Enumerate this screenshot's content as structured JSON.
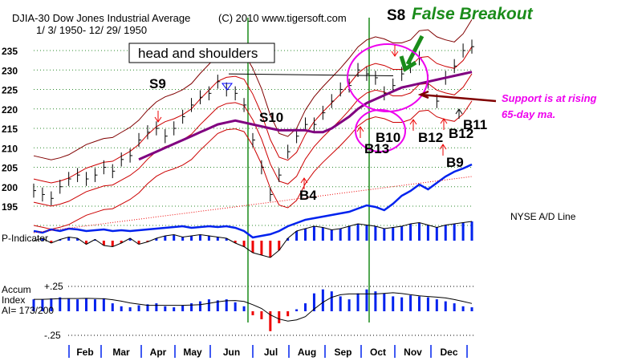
{
  "chart_data": {
    "type": "line",
    "title": "DJIA-30  Dow Jones Industrial Average",
    "date_range": "1/ 3/ 1950- 12/ 29/ 1950",
    "copyright": "(C) 2010 www.tigersoft.com",
    "ylim": [
      195,
      235
    ],
    "y_ticks": [
      "235",
      "230",
      "225",
      "220",
      "215",
      "210",
      "205",
      "200",
      "195"
    ],
    "months": [
      "Feb",
      "Mar",
      "Apr",
      "May",
      "Jun",
      "Jul",
      "Aug",
      "Sep",
      "Oct",
      "Nov",
      "Dec"
    ],
    "weekly_close": [
      199,
      198,
      197,
      200,
      202,
      203,
      202,
      203,
      205,
      204,
      207,
      208,
      212,
      214,
      215,
      213,
      215,
      218,
      221,
      223,
      224,
      227,
      225,
      224,
      221,
      212,
      205,
      198,
      203,
      209,
      213,
      216,
      216,
      219,
      222,
      225,
      226,
      230,
      229,
      228,
      224,
      226,
      229,
      231,
      233,
      227,
      222,
      228,
      231,
      235,
      236
    ],
    "ma65": [
      null,
      null,
      null,
      null,
      null,
      null,
      null,
      null,
      null,
      null,
      null,
      null,
      207,
      208,
      209,
      210,
      211,
      212,
      213,
      214,
      215,
      216,
      216.5,
      217,
      216.5,
      216,
      215.5,
      215,
      214.5,
      214.5,
      214.5,
      214.5,
      214,
      214,
      215,
      216.5,
      218,
      220,
      221.5,
      222.5,
      223.5,
      224.5,
      225.5,
      226,
      226.5,
      227,
      227.5,
      228,
      228.5,
      229,
      229.5
    ],
    "ad_line": [
      12,
      10,
      14,
      12,
      15,
      14,
      12,
      13,
      14,
      12,
      13,
      12,
      13,
      14,
      15,
      16,
      17,
      18,
      16,
      17,
      18,
      17,
      18,
      16,
      12,
      4,
      6,
      8,
      12,
      18,
      22,
      26,
      28,
      30,
      32,
      34,
      36,
      40,
      44,
      42,
      38,
      46,
      56,
      62,
      70,
      64,
      72,
      80,
      86,
      90,
      95
    ],
    "p_indicator": [
      0,
      2,
      -2,
      1,
      3,
      2,
      -3,
      1,
      -4,
      -5,
      -2,
      2,
      -3,
      -1,
      2,
      4,
      5,
      3,
      4,
      5,
      4,
      3,
      2,
      -2,
      -5,
      -10,
      -12,
      -14,
      -8,
      2,
      8,
      10,
      12,
      11,
      9,
      10,
      12,
      14,
      13,
      12,
      10,
      11,
      12,
      14,
      15,
      13,
      11,
      13,
      14,
      15,
      16
    ],
    "accum_index": [
      0.12,
      0.12,
      0.13,
      0.14,
      0.13,
      0.12,
      0.13,
      0.12,
      0.13,
      0.08,
      0.05,
      0.04,
      0.06,
      0.07,
      0.08,
      0.05,
      0.04,
      0.06,
      0.08,
      0.1,
      0.12,
      0.11,
      0.12,
      0.09,
      0.05,
      -0.04,
      -0.08,
      -0.2,
      -0.12,
      -0.05,
      0.02,
      0.08,
      0.18,
      0.22,
      0.2,
      0.15,
      0.12,
      0.18,
      0.22,
      0.2,
      0.18,
      0.15,
      0.14,
      0.16,
      0.15,
      0.14,
      0.12,
      0.1,
      0.08,
      0.05,
      0.04
    ],
    "accum_ticks": [
      "+.25",
      "-.25"
    ]
  },
  "annotations": {
    "pattern_box": "head and shoulders",
    "false_breakout_signal": "S8",
    "false_breakout": "False Breakout",
    "support_line1": "Support is at rising",
    "support_line2": "65-day ma.",
    "signals": [
      "S9",
      "S10",
      "B4",
      "B13",
      "B10",
      "B12",
      "B12",
      "B11",
      "B9"
    ]
  },
  "panels": {
    "ad_label": "NYSE A/D Line",
    "p_label": "P-Indicator",
    "accum_label1": "Accum",
    "accum_label2": "Index",
    "accum_label3": "AI= 173/200"
  },
  "colors": {
    "grid": "#2e8b2e",
    "price": "#000000",
    "ma": "#800080",
    "band": "#cc0000",
    "band_outer": "#800000",
    "ad": "#0022ee",
    "magenta": "#ee00ee",
    "green": "#1a8c1a"
  }
}
